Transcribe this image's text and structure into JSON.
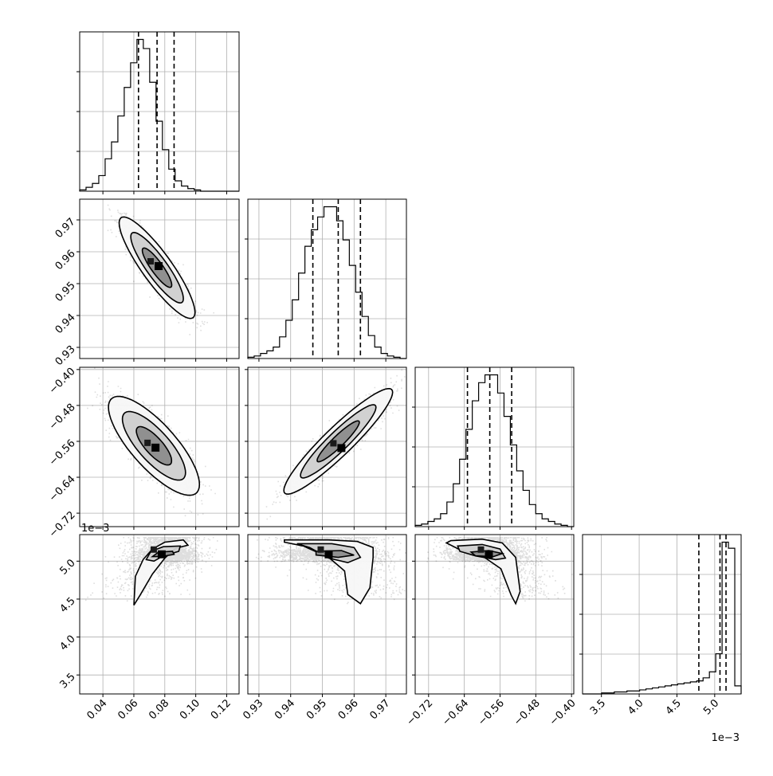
{
  "chart_data": {
    "type": "corner",
    "parameters": [
      {
        "range": [
          0.025,
          0.128
        ],
        "ticks": [
          0.04,
          0.06,
          0.08,
          0.1,
          0.12
        ],
        "tick_labels": [
          "0.04",
          "0.06",
          "0.08",
          "0.10",
          "0.12"
        ],
        "quantiles": [
          0.063,
          0.075,
          0.086
        ]
      },
      {
        "range": [
          0.9265,
          0.9765
        ],
        "ticks": [
          0.93,
          0.94,
          0.95,
          0.96,
          0.97
        ],
        "tick_labels": [
          "0.93",
          "0.94",
          "0.95",
          "0.96",
          "0.97"
        ],
        "quantiles": [
          0.947,
          0.955,
          0.962
        ]
      },
      {
        "range": [
          -0.75,
          -0.395
        ],
        "ticks": [
          -0.72,
          -0.64,
          -0.56,
          -0.48,
          -0.4
        ],
        "tick_labels": [
          "−0.72",
          "−0.64",
          "−0.56",
          "−0.48",
          "−0.40"
        ],
        "quantiles": [
          -0.633,
          -0.583,
          -0.534
        ]
      },
      {
        "range": [
          3.25,
          5.35
        ],
        "ticks": [
          3.5,
          4.0,
          4.5,
          5.0
        ],
        "tick_labels": [
          "3.5",
          "4.0",
          "4.5",
          "5.0"
        ],
        "quantiles": [
          4.79,
          5.07,
          5.15
        ],
        "scale_label": "1e−3"
      }
    ],
    "histograms": [
      {
        "param": 0,
        "edges": [
          0.025,
          0.1278
        ],
        "bins": 25,
        "counts": [
          1,
          3,
          6,
          12,
          25,
          38,
          58,
          80,
          99,
          117,
          110,
          84,
          54,
          32,
          17,
          8,
          4,
          2,
          1,
          0,
          0,
          0,
          0,
          0,
          0
        ]
      },
      {
        "param": 1,
        "edges": [
          0.9265,
          0.9765
        ],
        "bins": 25,
        "counts": [
          1,
          2,
          4,
          6,
          9,
          17,
          30,
          46,
          67,
          88,
          101,
          111,
          119,
          119,
          108,
          93,
          73,
          52,
          33,
          18,
          9,
          4,
          2,
          1,
          0
        ]
      },
      {
        "param": 2,
        "edges": [
          -0.75,
          -0.395
        ],
        "bins": 25,
        "counts": [
          1,
          2,
          4,
          6,
          10,
          19,
          33,
          52,
          75,
          97,
          111,
          117,
          117,
          103,
          85,
          63,
          43,
          28,
          17,
          10,
          6,
          4,
          2,
          1,
          0
        ]
      },
      {
        "param": 3,
        "edges": [
          3.25,
          5.35
        ],
        "bins": 25,
        "counts": [
          0,
          0,
          0,
          1,
          1,
          2,
          2,
          3,
          3,
          4,
          5,
          6,
          7,
          8,
          9,
          10,
          11,
          12,
          13,
          16,
          22,
          40,
          151,
          145,
          8
        ]
      }
    ],
    "pairs": [
      {
        "x_param": 0,
        "y_param": 1,
        "center": [
          0.075,
          0.955
        ],
        "sd": [
          0.01,
          0.0065
        ],
        "rho": -0.88,
        "mode": [
          0.076,
          0.9555
        ]
      },
      {
        "x_param": 0,
        "y_param": 2,
        "center": [
          0.073,
          -0.57
        ],
        "sd": [
          0.012,
          0.045
        ],
        "rho": -0.78,
        "mode": [
          0.074,
          -0.574
        ]
      },
      {
        "x_param": 1,
        "y_param": 2,
        "center": [
          0.955,
          -0.56
        ],
        "sd": [
          0.007,
          0.048
        ],
        "rho": 0.93,
        "mode": [
          0.956,
          -0.575
        ]
      },
      {
        "x_param": 0,
        "y_param": 3,
        "center": [
          0.082,
          5.09
        ],
        "mode": [
          0.078,
          5.09
        ],
        "shape": "banana"
      },
      {
        "x_param": 1,
        "y_param": 3,
        "center": [
          0.955,
          5.09
        ],
        "mode": [
          0.952,
          5.09
        ],
        "shape": "banana"
      },
      {
        "x_param": 2,
        "y_param": 3,
        "center": [
          -0.58,
          5.09
        ],
        "mode": [
          -0.585,
          5.09
        ],
        "shape": "banana"
      }
    ],
    "grid": true,
    "scale_label": "1e−3"
  }
}
